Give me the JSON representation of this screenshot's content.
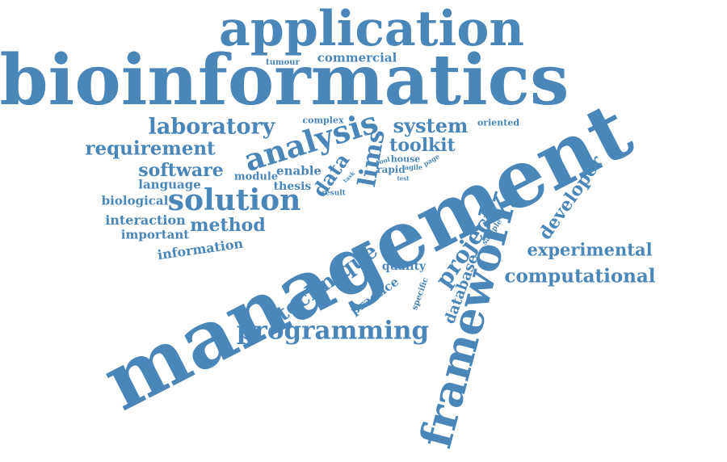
{
  "color": "#4a86b8",
  "words": {
    "management": "management",
    "bioinformatics": "bioinformatics",
    "application": "application",
    "framework": "framework",
    "analysis": "analysis",
    "solution": "solution",
    "programming": "programming",
    "laboratory": "laboratory",
    "requirement": "requirement",
    "software": "software",
    "system": "system",
    "toolkit": "toolkit",
    "lims": "lims",
    "data": "data",
    "project": "project",
    "technique": "technique",
    "computational": "computational",
    "experimental": "experimental",
    "developer": "developer",
    "database": "database",
    "method": "method",
    "information": "information",
    "interaction": "interaction",
    "important": "important",
    "biological": "biological",
    "language": "language",
    "module": "module",
    "enable": "enable",
    "thesis": "thesis",
    "commercial": "commercial",
    "tumour": "tumour",
    "complex": "complex",
    "oriented": "oriented",
    "quality": "quality",
    "practice": "practice",
    "specific": "specific",
    "sample": "sample",
    "tool": "tool",
    "house": "house",
    "rapid": "rapid",
    "agile": "agile",
    "page": "page",
    "test": "test",
    "task": "task",
    "result": "result"
  }
}
